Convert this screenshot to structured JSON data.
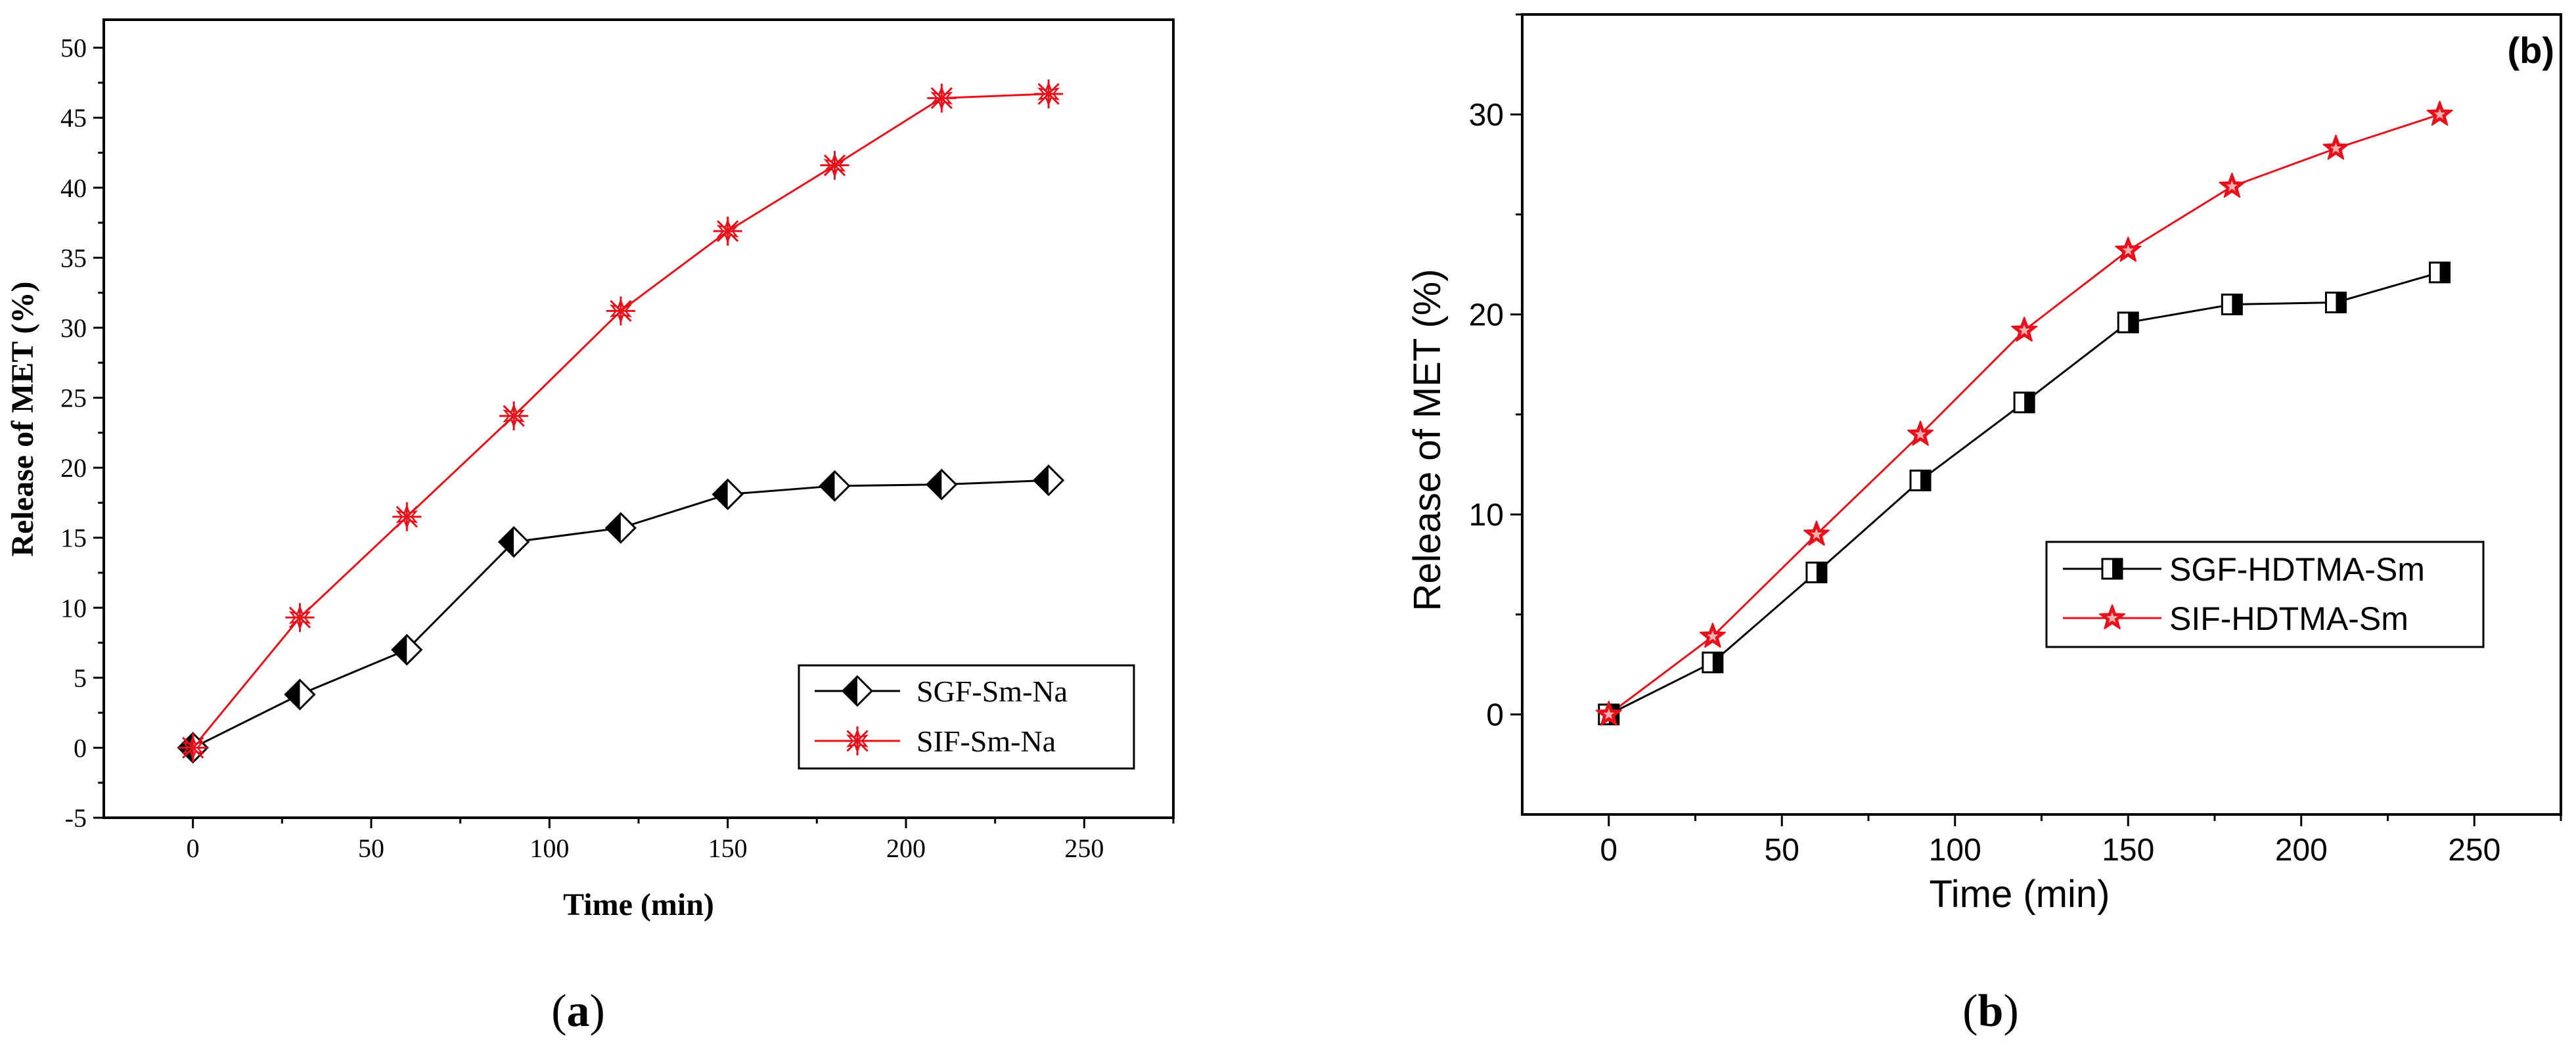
{
  "figure": {
    "colors": {
      "black": "#000000",
      "red": "#e8101a",
      "white": "#ffffff"
    }
  },
  "chart_data": [
    {
      "id": "a",
      "type": "line",
      "panel_caption": "(a)",
      "caption_letter": "a",
      "title": "",
      "xlabel": "Time (min)",
      "ylabel": "Release of MET (%)",
      "xlim": [
        -25,
        275
      ],
      "ylim": [
        -5,
        52
      ],
      "xticks": [
        0,
        50,
        100,
        150,
        200,
        250
      ],
      "yticks": [
        -5,
        0,
        5,
        10,
        15,
        20,
        25,
        30,
        35,
        40,
        45,
        50
      ],
      "grid": false,
      "legend_position": "bottom-right",
      "x": [
        0,
        30,
        60,
        90,
        120,
        150,
        180,
        210,
        240
      ],
      "series": [
        {
          "name": "SGF-Sm-Na",
          "marker": "half-filled-diamond",
          "color": "#000000",
          "values": [
            0,
            3.8,
            7.0,
            14.7,
            15.7,
            18.1,
            18.7,
            18.8,
            19.1
          ]
        },
        {
          "name": "SIF-Sm-Na",
          "marker": "asterisk",
          "color": "#e8101a",
          "values": [
            0,
            9.3,
            16.5,
            23.7,
            31.2,
            36.9,
            41.6,
            46.4,
            46.7
          ]
        }
      ]
    },
    {
      "id": "b",
      "type": "line",
      "panel_caption": "(b)",
      "caption_letter": "b",
      "corner_label": "(b)",
      "title": "",
      "xlabel": "Time (min)",
      "ylabel": "Release of MET (%)",
      "xlim": [
        -25,
        275
      ],
      "ylim": [
        -5,
        35
      ],
      "xticks": [
        0,
        50,
        100,
        150,
        200,
        250
      ],
      "yticks": [
        0,
        10,
        20,
        30
      ],
      "grid": false,
      "legend_position": "center-right",
      "x": [
        0,
        30,
        60,
        90,
        120,
        150,
        180,
        210,
        240
      ],
      "series": [
        {
          "name": "SGF-HDTMA-Sm",
          "marker": "half-filled-square",
          "color": "#000000",
          "values": [
            0,
            2.6,
            7.1,
            11.7,
            15.6,
            19.6,
            20.5,
            20.6,
            22.1
          ]
        },
        {
          "name": "SIF-HDTMA-Sm",
          "marker": "star",
          "color": "#e8101a",
          "values": [
            0,
            3.9,
            9.0,
            14.0,
            19.2,
            23.2,
            26.4,
            28.3,
            30.0
          ]
        }
      ]
    }
  ]
}
